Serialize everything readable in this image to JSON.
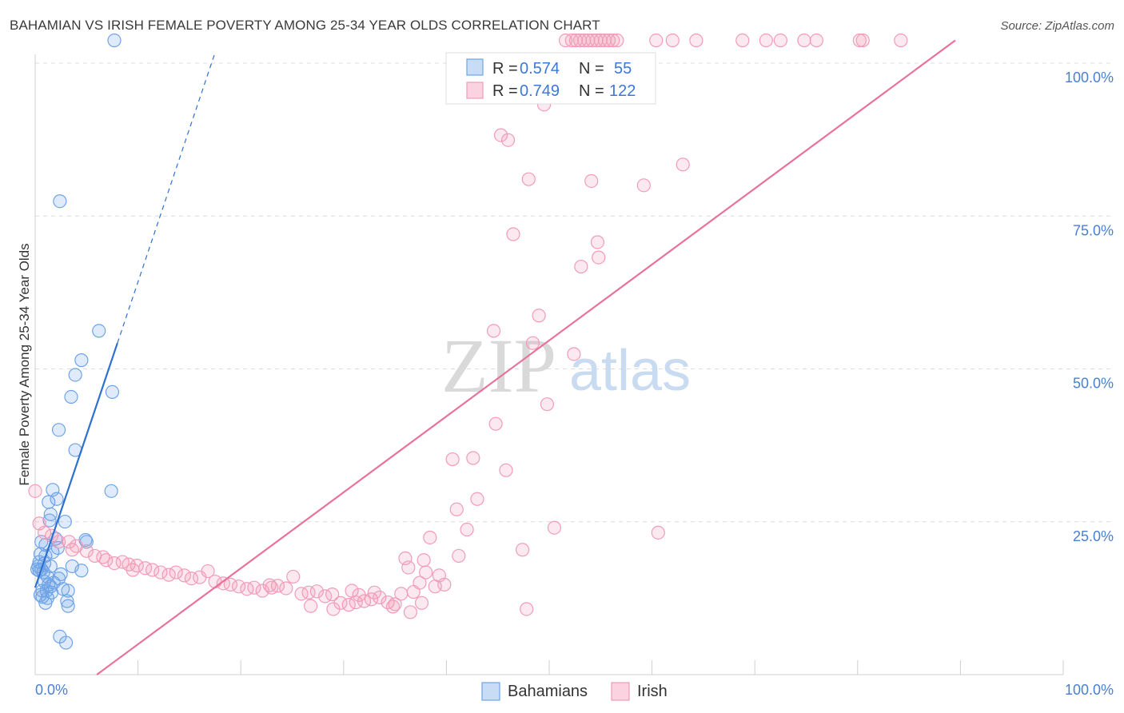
{
  "title": "BAHAMIAN VS IRISH FEMALE POVERTY AMONG 25-34 YEAR OLDS CORRELATION CHART",
  "source": "Source: ZipAtlas.com",
  "watermark": {
    "left": "ZIP",
    "right": "atlas"
  },
  "colors": {
    "bahamians": "#6fa3e6",
    "bahamians_line": "#2f6fd0",
    "irish": "#f19bb8",
    "irish_line": "#e8729a",
    "grid": "#dcdcdc",
    "tick_label": "#4a7fd1"
  },
  "legend_box": {
    "rows": [
      {
        "series": "bahamians",
        "r_label": "R =",
        "r_value": "0.574",
        "n_label": "N =",
        "n_value": "55"
      },
      {
        "series": "irish",
        "r_label": "R =",
        "r_value": "0.749",
        "n_label": "N =",
        "n_value": "122"
      }
    ]
  },
  "bottom_legend": [
    {
      "series": "bahamians",
      "label": "Bahamians"
    },
    {
      "series": "irish",
      "label": "Irish"
    }
  ],
  "chart_data": {
    "type": "scatter",
    "title": "BAHAMIAN VS IRISH FEMALE POVERTY AMONG 25-34 YEAR OLDS CORRELATION CHART",
    "xlabel": "",
    "ylabel": "Female Poverty Among 25-34 Year Olds",
    "xlim": [
      0,
      100
    ],
    "ylim": [
      0,
      100
    ],
    "x_tick_labels": [
      {
        "value": 0,
        "label": "0.0%"
      },
      {
        "value": 100,
        "label": "100.0%"
      }
    ],
    "y_tick_labels": [
      {
        "value": 25,
        "label": "25.0%"
      },
      {
        "value": 50,
        "label": "50.0%"
      },
      {
        "value": 75,
        "label": "75.0%"
      },
      {
        "value": 100,
        "label": "100.0%"
      }
    ],
    "grid": true,
    "legend_position": "top-center",
    "series": [
      {
        "name": "Bahamians",
        "color": "#6fa3e6",
        "trend": {
          "x0": 0,
          "y0": 12.0,
          "x1": 8.0,
          "y1": 52.0,
          "dashed_to_x": 17.5
        },
        "points": [
          [
            7.7,
            101.5
          ],
          [
            2.4,
            75.2
          ],
          [
            6.2,
            54.0
          ],
          [
            4.5,
            49.2
          ],
          [
            3.9,
            46.8
          ],
          [
            7.5,
            44.0
          ],
          [
            3.5,
            43.2
          ],
          [
            2.3,
            37.8
          ],
          [
            3.9,
            34.5
          ],
          [
            7.4,
            27.8
          ],
          [
            1.7,
            28.0
          ],
          [
            1.3,
            26.0
          ],
          [
            2.1,
            26.5
          ],
          [
            1.5,
            24.0
          ],
          [
            1.4,
            23.0
          ],
          [
            2.9,
            22.8
          ],
          [
            0.6,
            19.5
          ],
          [
            1.0,
            19.0
          ],
          [
            2.2,
            18.5
          ],
          [
            4.9,
            19.8
          ],
          [
            5.0,
            19.5
          ],
          [
            0.5,
            17.5
          ],
          [
            1.0,
            17.2
          ],
          [
            1.7,
            17.8
          ],
          [
            0.4,
            16.2
          ],
          [
            0.9,
            16.0
          ],
          [
            0.3,
            15.5
          ],
          [
            0.6,
            15.0
          ],
          [
            1.5,
            15.5
          ],
          [
            3.6,
            15.5
          ],
          [
            0.2,
            15.0
          ],
          [
            0.4,
            14.8
          ],
          [
            0.8,
            14.5
          ],
          [
            1.2,
            13.8
          ],
          [
            2.5,
            14.2
          ],
          [
            0.9,
            13.0
          ],
          [
            2.3,
            13.5
          ],
          [
            1.3,
            12.5
          ],
          [
            1.5,
            12.2
          ],
          [
            1.8,
            12.8
          ],
          [
            0.7,
            11.5
          ],
          [
            1.1,
            11.5
          ],
          [
            4.5,
            14.8
          ],
          [
            2.7,
            11.8
          ],
          [
            3.2,
            11.5
          ],
          [
            0.5,
            10.8
          ],
          [
            0.7,
            10.5
          ],
          [
            1.2,
            10.3
          ],
          [
            3.1,
            9.8
          ],
          [
            1.0,
            9.5
          ],
          [
            3.2,
            9.0
          ],
          [
            2.4,
            4.0
          ],
          [
            3.0,
            3.0
          ],
          [
            1.6,
            11.2
          ],
          [
            2.0,
            20.0
          ]
        ]
      },
      {
        "name": "Irish",
        "color": "#f19bb8",
        "trend": {
          "x0": 6.0,
          "y0": 0.0,
          "x1": 89.5,
          "y1": 101.5
        },
        "points": [
          [
            51.6,
            101.5
          ],
          [
            52.2,
            101.5
          ],
          [
            52.6,
            101.5
          ],
          [
            53.0,
            101.5
          ],
          [
            53.4,
            101.5
          ],
          [
            53.8,
            101.5
          ],
          [
            54.2,
            101.5
          ],
          [
            54.6,
            101.5
          ],
          [
            55.0,
            101.5
          ],
          [
            55.4,
            101.5
          ],
          [
            55.8,
            101.5
          ],
          [
            56.2,
            101.5
          ],
          [
            56.6,
            101.5
          ],
          [
            60.4,
            101.5
          ],
          [
            62.0,
            101.5
          ],
          [
            64.3,
            101.5
          ],
          [
            68.8,
            101.5
          ],
          [
            71.1,
            101.5
          ],
          [
            72.5,
            101.5
          ],
          [
            74.8,
            101.5
          ],
          [
            76.0,
            101.5
          ],
          [
            80.2,
            101.5
          ],
          [
            80.5,
            101.5
          ],
          [
            84.2,
            101.5
          ],
          [
            49.5,
            91.0
          ],
          [
            45.3,
            86.0
          ],
          [
            46.0,
            85.2
          ],
          [
            63.0,
            81.2
          ],
          [
            48.0,
            78.8
          ],
          [
            54.1,
            78.5
          ],
          [
            59.2,
            77.8
          ],
          [
            46.5,
            69.8
          ],
          [
            54.7,
            68.5
          ],
          [
            54.8,
            66.0
          ],
          [
            53.1,
            64.5
          ],
          [
            49.0,
            56.5
          ],
          [
            44.6,
            54.0
          ],
          [
            48.4,
            52.0
          ],
          [
            52.4,
            50.2
          ],
          [
            49.8,
            42.0
          ],
          [
            44.8,
            38.8
          ],
          [
            42.6,
            33.2
          ],
          [
            40.6,
            33.0
          ],
          [
            45.8,
            31.2
          ],
          [
            43.0,
            26.5
          ],
          [
            41.0,
            24.8
          ],
          [
            42.0,
            21.5
          ],
          [
            50.5,
            21.8
          ],
          [
            38.4,
            20.2
          ],
          [
            60.6,
            21.0
          ],
          [
            47.4,
            18.2
          ],
          [
            41.2,
            17.2
          ],
          [
            36.0,
            16.8
          ],
          [
            37.8,
            16.5
          ],
          [
            36.3,
            15.3
          ],
          [
            38.0,
            14.5
          ],
          [
            39.3,
            14.0
          ],
          [
            38.9,
            12.2
          ],
          [
            39.8,
            12.5
          ],
          [
            37.4,
            12.8
          ],
          [
            35.6,
            11.0
          ],
          [
            36.8,
            11.3
          ],
          [
            37.6,
            9.5
          ],
          [
            47.8,
            8.5
          ],
          [
            0.0,
            27.8
          ],
          [
            0.4,
            22.5
          ],
          [
            0.9,
            21.0
          ],
          [
            1.6,
            20.5
          ],
          [
            2.3,
            19.5
          ],
          [
            3.3,
            19.5
          ],
          [
            4.0,
            18.8
          ],
          [
            3.6,
            18.2
          ],
          [
            5.0,
            18.0
          ],
          [
            5.8,
            17.2
          ],
          [
            6.6,
            17.0
          ],
          [
            6.9,
            16.5
          ],
          [
            7.7,
            16.0
          ],
          [
            8.5,
            16.2
          ],
          [
            9.1,
            15.8
          ],
          [
            9.9,
            15.6
          ],
          [
            10.7,
            15.2
          ],
          [
            11.4,
            14.9
          ],
          [
            12.2,
            14.5
          ],
          [
            13.0,
            14.1
          ],
          [
            13.7,
            14.5
          ],
          [
            14.5,
            14.0
          ],
          [
            15.2,
            13.5
          ],
          [
            16.0,
            13.7
          ],
          [
            16.8,
            14.7
          ],
          [
            17.5,
            13.0
          ],
          [
            18.3,
            12.7
          ],
          [
            19.0,
            12.5
          ],
          [
            19.8,
            12.2
          ],
          [
            20.6,
            11.8
          ],
          [
            21.3,
            12.0
          ],
          [
            22.1,
            11.5
          ],
          [
            22.8,
            12.4
          ],
          [
            23.6,
            12.3
          ],
          [
            24.4,
            11.9
          ],
          [
            25.1,
            13.8
          ],
          [
            25.9,
            11.0
          ],
          [
            26.6,
            11.2
          ],
          [
            27.4,
            11.4
          ],
          [
            28.2,
            10.6
          ],
          [
            28.9,
            10.9
          ],
          [
            29.7,
            9.5
          ],
          [
            30.5,
            9.2
          ],
          [
            31.2,
            9.6
          ],
          [
            32.0,
            9.8
          ],
          [
            32.7,
            10.1
          ],
          [
            33.5,
            10.4
          ],
          [
            34.3,
            9.6
          ],
          [
            35.0,
            9.3
          ],
          [
            23.0,
            12.0
          ],
          [
            30.8,
            11.5
          ],
          [
            33.0,
            11.2
          ],
          [
            31.5,
            10.8
          ],
          [
            34.8,
            8.9
          ],
          [
            26.8,
            9.0
          ],
          [
            29.0,
            8.5
          ],
          [
            36.5,
            8.0
          ],
          [
            9.5,
            14.9
          ]
        ]
      }
    ]
  }
}
